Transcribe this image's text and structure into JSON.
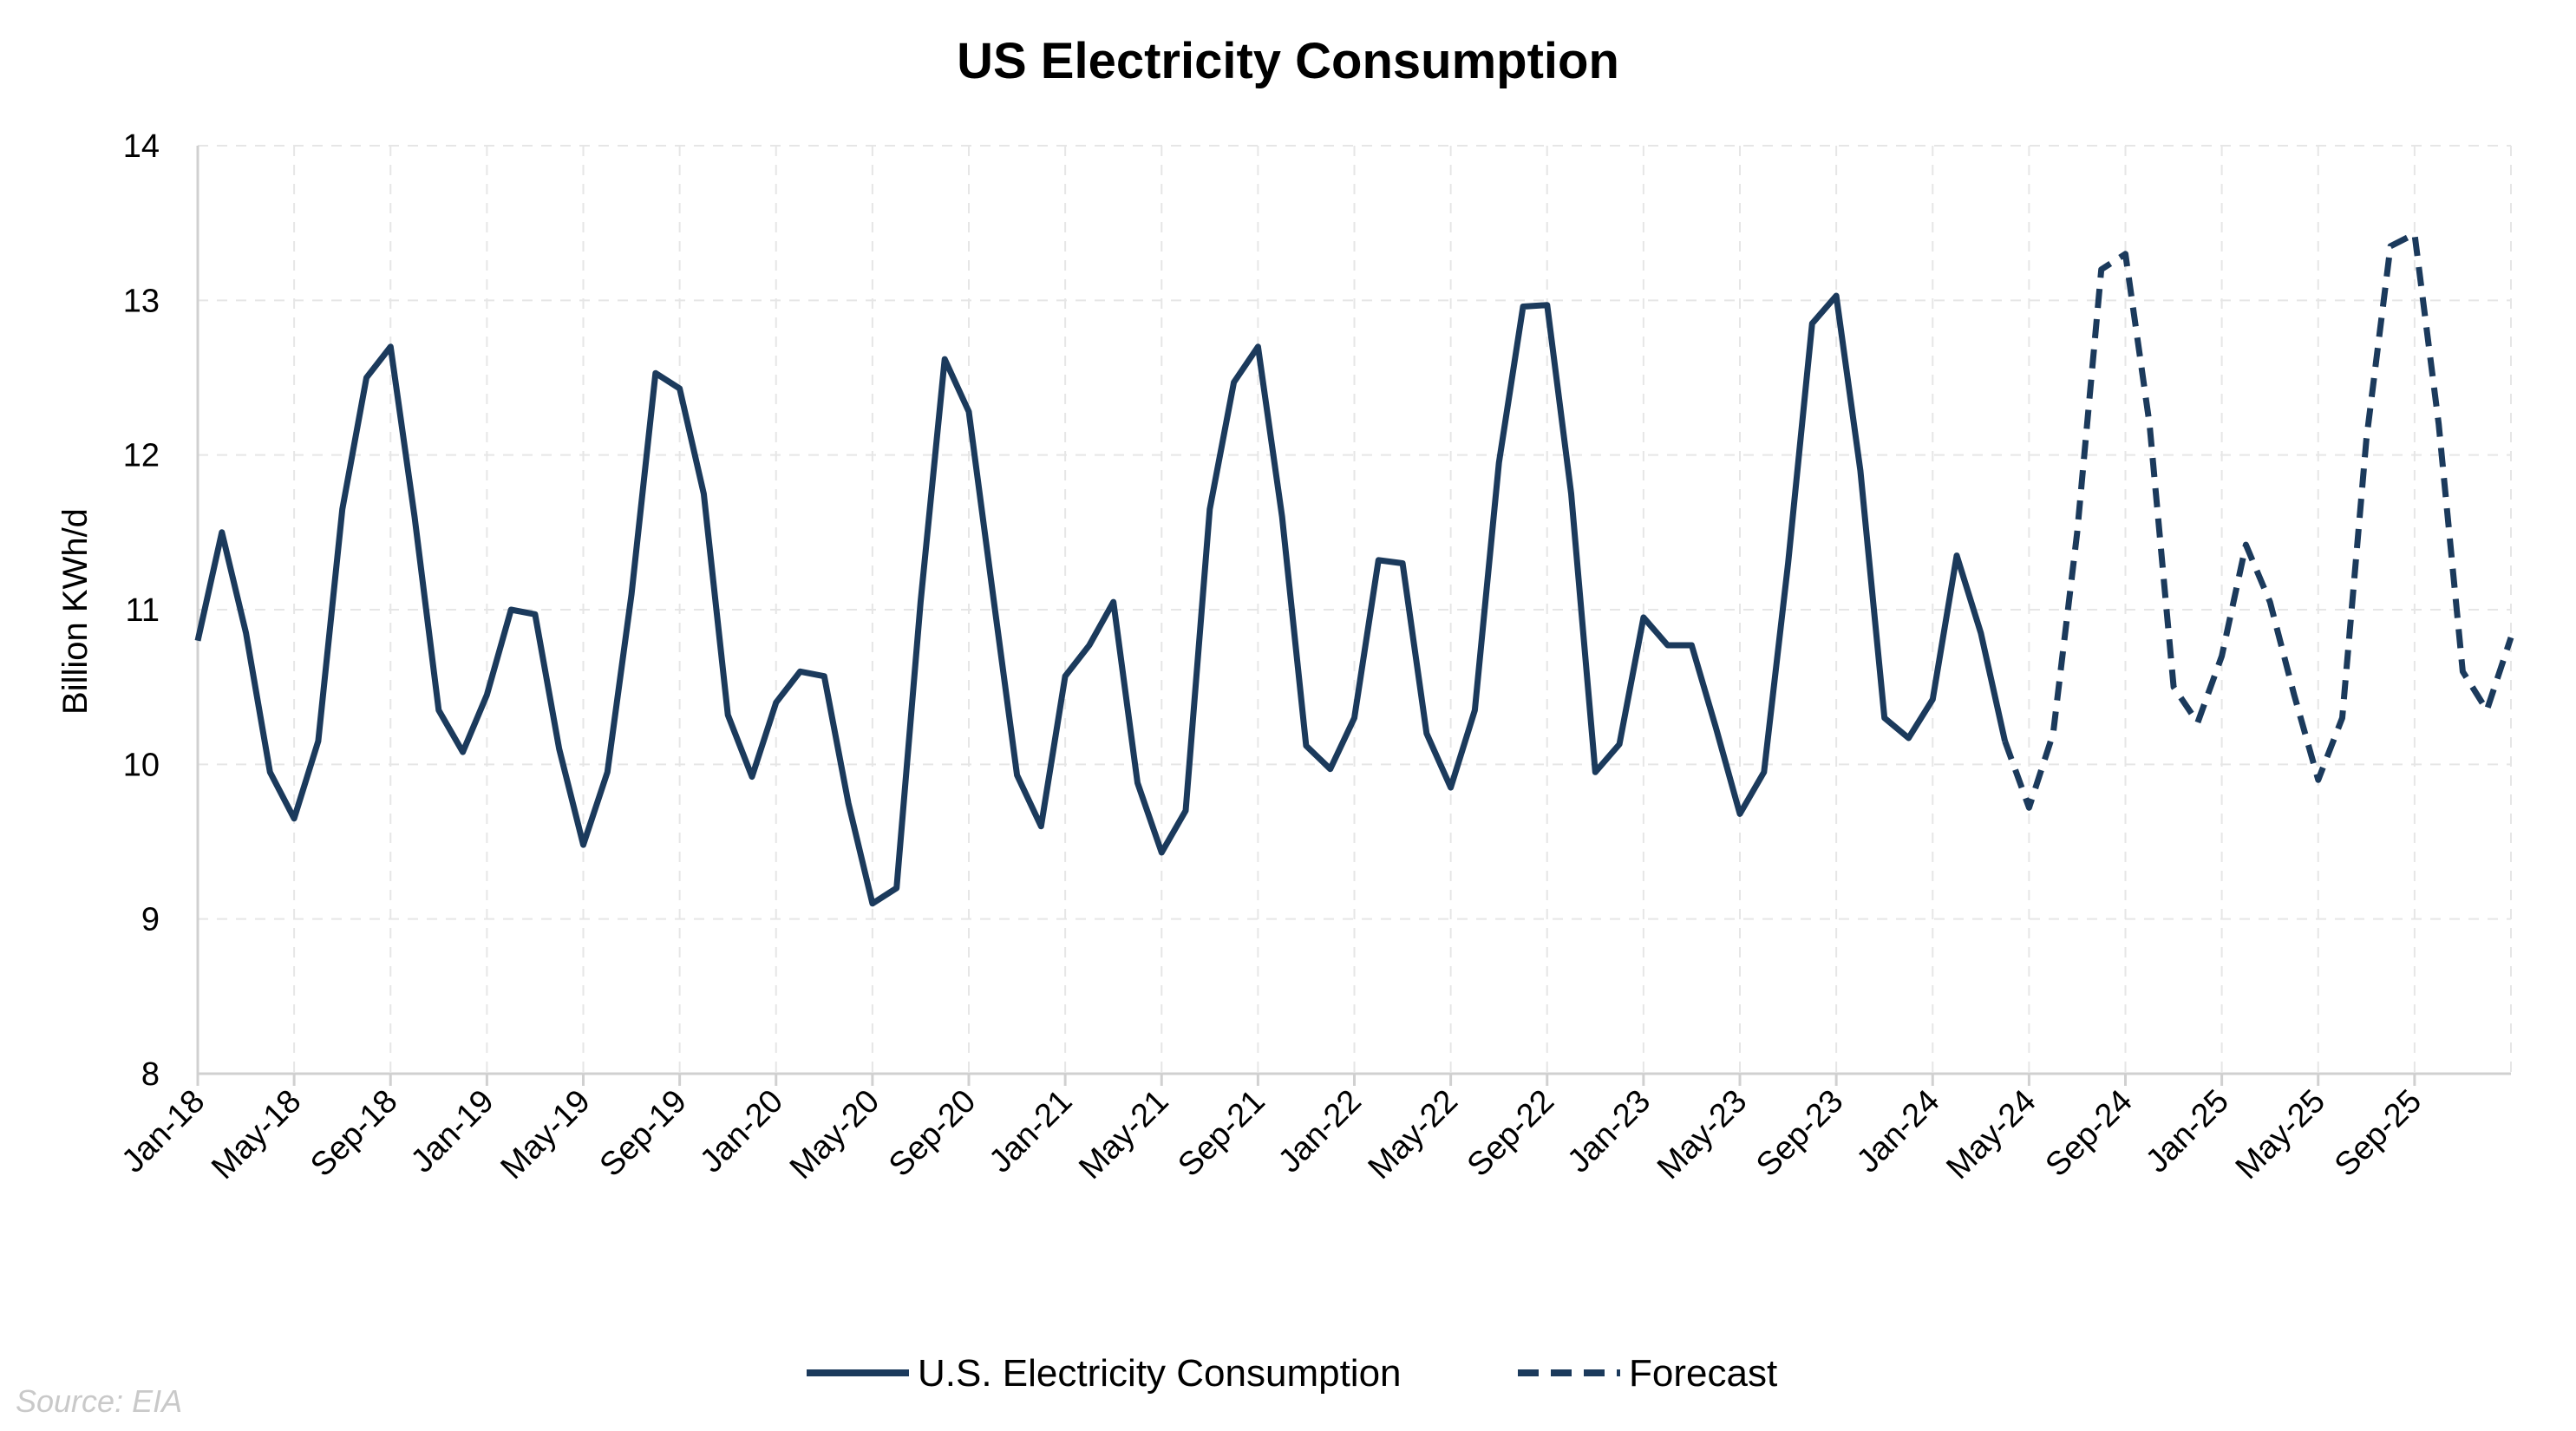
{
  "chart_data": {
    "type": "line",
    "title": "US Electricity Consumption",
    "ylabel": "Billion KWh/d",
    "xlabel": "",
    "ylim": [
      8,
      14
    ],
    "yticks": [
      "8",
      "9",
      "10",
      "11",
      "12",
      "13",
      "14"
    ],
    "xtick_labels": [
      "Jan-18",
      "May-18",
      "Sep-18",
      "Jan-19",
      "May-19",
      "Sep-19",
      "Jan-20",
      "May-20",
      "Sep-20",
      "Jan-21",
      "May-21",
      "Sep-21",
      "Jan-22",
      "May-22",
      "Sep-22",
      "Jan-23",
      "May-23",
      "Sep-23",
      "Jan-24",
      "May-24",
      "Sep-24",
      "Jan-25",
      "May-25",
      "Sep-25"
    ],
    "x_start": "Jan-18",
    "grid": true,
    "legend_position": "bottom",
    "source": "Source: EIA",
    "series": [
      {
        "name": "U.S. Electricity Consumption",
        "style": "solid",
        "color": "#1b3a5c",
        "start": "Jan-18",
        "values": [
          10.8,
          11.5,
          10.85,
          9.95,
          9.65,
          10.15,
          11.65,
          12.5,
          12.7,
          11.6,
          10.35,
          10.08,
          10.45,
          11.0,
          10.97,
          10.1,
          9.48,
          9.95,
          11.1,
          12.53,
          12.43,
          11.75,
          10.32,
          9.92,
          10.4,
          10.6,
          10.57,
          9.75,
          9.1,
          9.2,
          11.05,
          12.62,
          12.28,
          11.1,
          9.93,
          9.6,
          10.57,
          10.77,
          11.05,
          9.88,
          9.43,
          9.7,
          11.65,
          12.47,
          12.7,
          11.6,
          10.12,
          9.97,
          10.3,
          11.32,
          11.3,
          10.2,
          9.85,
          10.35,
          11.95,
          12.96,
          12.97,
          11.75,
          9.95,
          10.13,
          10.95,
          10.77,
          10.77,
          10.24,
          9.68,
          9.95,
          11.3,
          12.85,
          13.03,
          11.9,
          10.3,
          10.17,
          10.42,
          11.35,
          10.85,
          10.15
        ]
      },
      {
        "name": "Forecast",
        "style": "dashed",
        "color": "#1b3a5c",
        "start": "Apr-24",
        "values": [
          10.15,
          9.72,
          10.2,
          11.5,
          13.2,
          13.3,
          12.2,
          10.5,
          10.27,
          10.7,
          11.42,
          11.05,
          10.45,
          9.9,
          10.3,
          12.1,
          13.35,
          13.43,
          12.2,
          10.6,
          10.35,
          10.82
        ]
      }
    ]
  }
}
